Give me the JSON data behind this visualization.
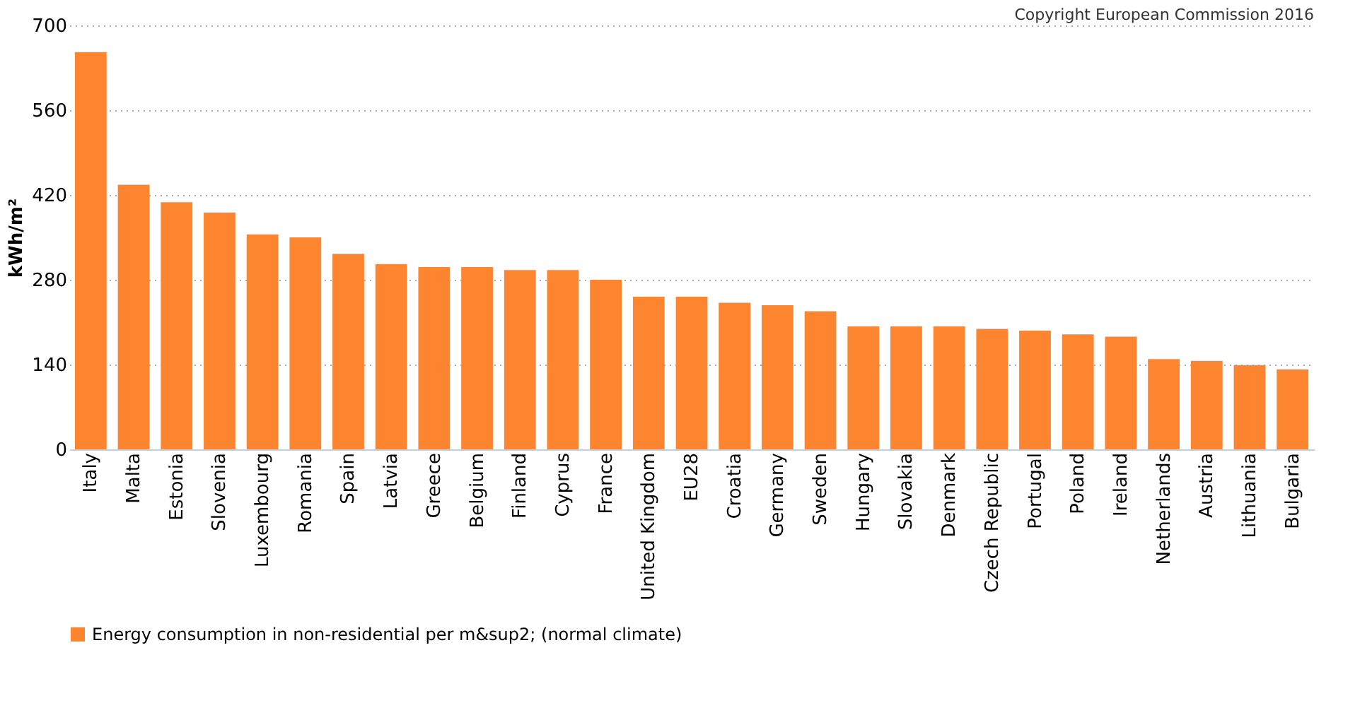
{
  "chart_data": {
    "type": "bar",
    "categories": [
      "Italy",
      "Malta",
      "Estonia",
      "Slovenia",
      "Luxembourg",
      "Romania",
      "Spain",
      "Latvia",
      "Greece",
      "Belgium",
      "Finland",
      "Cyprus",
      "France",
      "United Kingdom",
      "EU28",
      "Croatia",
      "Germany",
      "Sweden",
      "Hungary",
      "Slovakia",
      "Denmark",
      "Czech Republic",
      "Portugal",
      "Poland",
      "Ireland",
      "Netherlands",
      "Austria",
      "Lithuania",
      "Bulgaria"
    ],
    "series": [
      {
        "name": "Energy consumption in non-residential per m&sup2; (normal climate)",
        "color": "#fd8530",
        "values": [
          656,
          437,
          408,
          391,
          355,
          350,
          323,
          306,
          301,
          301,
          296,
          296,
          280,
          252,
          252,
          242,
          238,
          228,
          203,
          203,
          203,
          199,
          196,
          190,
          186,
          149,
          146,
          139,
          132
        ]
      }
    ],
    "ylabel": "kWh/m²",
    "ylim": [
      0,
      700
    ],
    "yticks": [
      0,
      140,
      280,
      420,
      560,
      700
    ],
    "grid": "y",
    "legend": "bottom",
    "annotations": [
      "Copyright European Commission 2016"
    ]
  }
}
